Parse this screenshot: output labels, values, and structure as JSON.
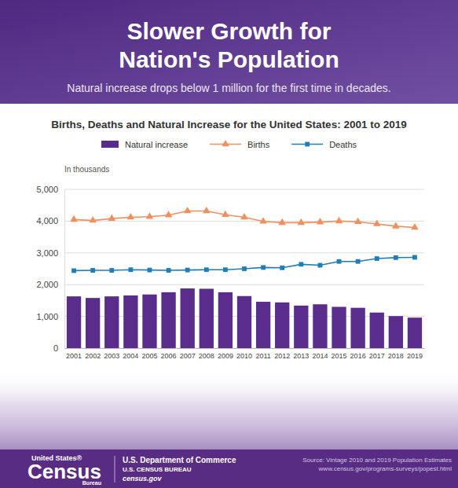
{
  "header": {
    "title_lines": [
      "Slower Growth for",
      "Nation's Population"
    ],
    "subtitle": "Natural increase drops below 1 million for the first time in decades."
  },
  "chart_data": {
    "type": "bar",
    "title": "Births, Deaths and Natural Increase for the United States: 2001 to 2019",
    "y_label": "In thousands",
    "categories": [
      "2001",
      "2002",
      "2003",
      "2004",
      "2005",
      "2006",
      "2007",
      "2008",
      "2009",
      "2010",
      "2011",
      "2012",
      "2013",
      "2014",
      "2015",
      "2016",
      "2017",
      "2018",
      "2019"
    ],
    "series": [
      {
        "name": "Natural increase",
        "type": "bar",
        "color": "#5a2d8c",
        "values": [
          1630,
          1580,
          1630,
          1660,
          1690,
          1760,
          1880,
          1870,
          1760,
          1640,
          1460,
          1440,
          1340,
          1380,
          1300,
          1270,
          1120,
          1010,
          960
        ]
      },
      {
        "name": "Births",
        "type": "line",
        "color": "#f0905f",
        "marker": "triangle",
        "line_style": "solid",
        "values": [
          4050,
          4020,
          4080,
          4120,
          4140,
          4190,
          4320,
          4320,
          4200,
          4120,
          3990,
          3950,
          3950,
          3970,
          4000,
          3980,
          3910,
          3840,
          3800
        ]
      },
      {
        "name": "Deaths",
        "type": "line",
        "color": "#1f7db8",
        "marker": "square",
        "line_style": "solid",
        "values": [
          2440,
          2450,
          2450,
          2470,
          2460,
          2450,
          2460,
          2470,
          2470,
          2500,
          2540,
          2530,
          2640,
          2610,
          2730,
          2730,
          2820,
          2850,
          2860
        ]
      }
    ],
    "ylim": [
      0,
      5000
    ],
    "yticks": [
      0,
      {
        "value": 1000,
        "label": "1,000"
      },
      {
        "value": 2000,
        "label": "2,000"
      },
      {
        "value": 3000,
        "label": "3,000"
      },
      {
        "value": 4000,
        "label": "4,000"
      },
      {
        "value": 5000,
        "label": "5,000"
      }
    ],
    "grid": true,
    "legend": "top"
  },
  "footer": {
    "logo": {
      "top": "United States®",
      "main": "Census",
      "bottom": "Bureau"
    },
    "agency": [
      "U.S. Department of Commerce",
      "U.S. CENSUS BUREAU",
      "census.gov"
    ],
    "source": [
      "Source: Vintage 2010 and 2019 Population Estimates",
      "www.census.gov/programs-surveys/popest.html"
    ]
  }
}
